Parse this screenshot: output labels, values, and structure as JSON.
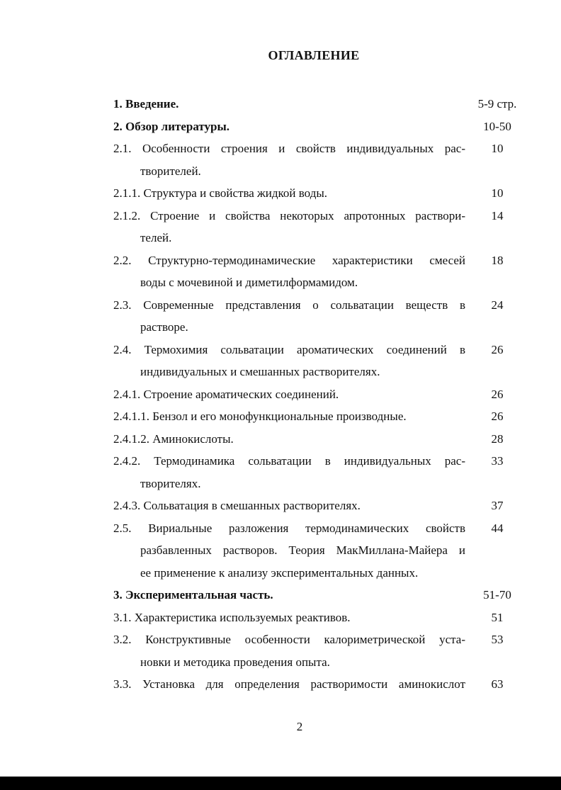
{
  "title": "ОГЛАВЛЕНИЕ",
  "entries": [
    {
      "lines": [
        "1. Введение."
      ],
      "page": "5-9 стр.",
      "bold": true
    },
    {
      "lines": [
        "2. Обзор литературы."
      ],
      "page": "10-50",
      "bold": true
    },
    {
      "lines": [
        "2.1. Особенности строения и свойств индивидуальных рас-",
        "творителей."
      ],
      "page": "10"
    },
    {
      "lines": [
        "2.1.1. Структура и свойства жидкой воды."
      ],
      "page": "10"
    },
    {
      "lines": [
        "2.1.2. Строение и свойства некоторых апротонных раствори-",
        "телей."
      ],
      "page": "14"
    },
    {
      "lines": [
        "2.2. Структурно-термодинамические характеристики смесей",
        "воды с мочевиной и диметилформамидом."
      ],
      "page": "18"
    },
    {
      "lines": [
        "2.3. Современные представления о сольватации веществ в",
        "растворе."
      ],
      "page": "24"
    },
    {
      "lines": [
        "2.4. Термохимия сольватации ароматических соединений в",
        "индивидуальных и смешанных растворителях."
      ],
      "page": "26"
    },
    {
      "lines": [
        "2.4.1. Строение ароматических соединений."
      ],
      "page": "26"
    },
    {
      "lines": [
        "2.4.1.1. Бензол и его монофункциональные производные."
      ],
      "page": "26"
    },
    {
      "lines": [
        "2.4.1.2. Аминокислоты."
      ],
      "page": "28"
    },
    {
      "lines": [
        "2.4.2. Термодинамика сольватации в индивидуальных рас-",
        "творителях."
      ],
      "page": "33"
    },
    {
      "lines": [
        "2.4.3. Сольватация в смешанных растворителях."
      ],
      "page": "37"
    },
    {
      "lines": [
        "2.5. Вириальные разложения термодинамических свойств",
        "разбавленных растворов. Теория МакМиллана-Майера и",
        "ее применение к анализу экспериментальных данных."
      ],
      "page": "44"
    },
    {
      "lines": [
        "3. Экспериментальная часть."
      ],
      "page": "51-70",
      "bold": true
    },
    {
      "lines": [
        "3.1. Характеристика используемых реактивов."
      ],
      "page": "51"
    },
    {
      "lines": [
        "3.2. Конструктивные особенности калориметрической уста-",
        "новки и методика проведения опыта."
      ],
      "page": "53"
    },
    {
      "lines": [
        "3.3. Установка для определения растворимости аминокислот"
      ],
      "page": "63",
      "justify_first": true
    }
  ],
  "page_number": "2"
}
